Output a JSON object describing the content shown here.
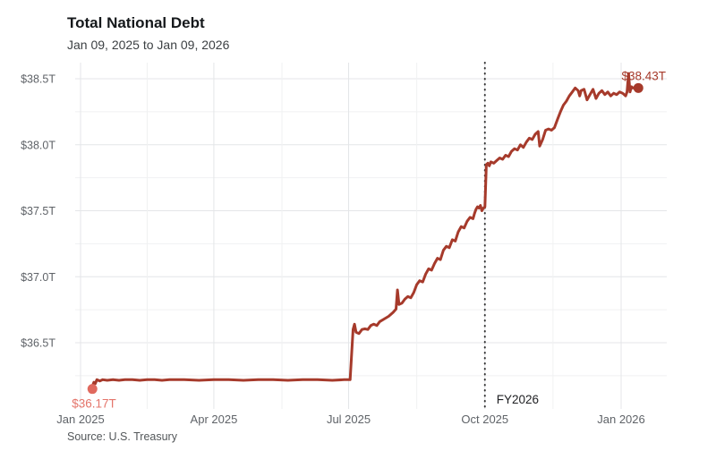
{
  "header": {
    "title": "Total National Debt",
    "subtitle": "Jan 09, 2025 to Jan 09, 2026"
  },
  "footer": {
    "source": "Source: U.S. Treasury"
  },
  "colors": {
    "line": "#a63a2b",
    "start_accent": "#e0695e",
    "start_label": "#e4756b",
    "end_label": "#a63a2b",
    "grid_major": "#e4e6e8",
    "grid_minor": "#f0f1f2",
    "axis_text": "#5f6368",
    "event_line": "#333333",
    "event_label": "#202124"
  },
  "chart_data": {
    "type": "line",
    "title": "Total National Debt",
    "subtitle": "Jan 09, 2025 to Jan 09, 2026",
    "source": "Source: U.S. Treasury",
    "xlabel": "",
    "ylabel": "",
    "x_unit": "days since 2025-01-01",
    "y_unit": "trillion USD",
    "xlim": [
      0,
      380
    ],
    "ylim": [
      35.99,
      38.62
    ],
    "grid": true,
    "x_ticks": [
      {
        "d": 0,
        "label": "Jan 2025"
      },
      {
        "d": 90,
        "label": "Apr 2025"
      },
      {
        "d": 181,
        "label": "Jul 2025"
      },
      {
        "d": 273,
        "label": "Oct 2025"
      },
      {
        "d": 365,
        "label": "Jan 2026"
      }
    ],
    "x_minor": [
      45,
      136,
      227,
      319
    ],
    "y_ticks": [
      {
        "v": 36.5,
        "label": "$36.5T"
      },
      {
        "v": 37.0,
        "label": "$37.0T"
      },
      {
        "v": 37.5,
        "label": "$37.5T"
      },
      {
        "v": 38.0,
        "label": "$38.0T"
      },
      {
        "v": 38.5,
        "label": "$38.5T"
      }
    ],
    "y_minor": [
      36.25,
      36.75,
      37.25,
      37.75,
      38.25
    ],
    "annotations": {
      "start_point": {
        "d": 8,
        "v": 36.17,
        "label": "$36.17T"
      },
      "end_point": {
        "d": 373,
        "v": 38.43,
        "label": "$38.43T"
      },
      "event_line": {
        "d": 273,
        "label": "FY2026"
      }
    },
    "series": [
      {
        "name": "Total National Debt",
        "points": [
          [
            8,
            36.17
          ],
          [
            9,
            36.2
          ],
          [
            10,
            36.19
          ],
          [
            11,
            36.22
          ],
          [
            13,
            36.21
          ],
          [
            15,
            36.22
          ],
          [
            18,
            36.215
          ],
          [
            22,
            36.22
          ],
          [
            26,
            36.215
          ],
          [
            30,
            36.22
          ],
          [
            35,
            36.22
          ],
          [
            40,
            36.215
          ],
          [
            45,
            36.22
          ],
          [
            50,
            36.22
          ],
          [
            55,
            36.215
          ],
          [
            60,
            36.22
          ],
          [
            70,
            36.22
          ],
          [
            80,
            36.215
          ],
          [
            90,
            36.22
          ],
          [
            100,
            36.22
          ],
          [
            110,
            36.215
          ],
          [
            120,
            36.22
          ],
          [
            130,
            36.22
          ],
          [
            140,
            36.215
          ],
          [
            150,
            36.22
          ],
          [
            160,
            36.22
          ],
          [
            170,
            36.215
          ],
          [
            178,
            36.22
          ],
          [
            182,
            36.22
          ],
          [
            184,
            36.6
          ],
          [
            185,
            36.64
          ],
          [
            186,
            36.58
          ],
          [
            188,
            36.57
          ],
          [
            190,
            36.6
          ],
          [
            192,
            36.605
          ],
          [
            194,
            36.6
          ],
          [
            196,
            36.63
          ],
          [
            198,
            36.64
          ],
          [
            200,
            36.63
          ],
          [
            202,
            36.66
          ],
          [
            205,
            36.68
          ],
          [
            208,
            36.7
          ],
          [
            211,
            36.73
          ],
          [
            213,
            36.755
          ],
          [
            214,
            36.9
          ],
          [
            215,
            36.79
          ],
          [
            217,
            36.8
          ],
          [
            219,
            36.83
          ],
          [
            221,
            36.85
          ],
          [
            223,
            36.84
          ],
          [
            225,
            36.88
          ],
          [
            227,
            36.94
          ],
          [
            229,
            36.97
          ],
          [
            231,
            36.96
          ],
          [
            233,
            37.02
          ],
          [
            235,
            37.06
          ],
          [
            237,
            37.05
          ],
          [
            239,
            37.1
          ],
          [
            241,
            37.14
          ],
          [
            243,
            37.13
          ],
          [
            245,
            37.2
          ],
          [
            247,
            37.23
          ],
          [
            249,
            37.22
          ],
          [
            251,
            37.28
          ],
          [
            253,
            37.27
          ],
          [
            255,
            37.34
          ],
          [
            257,
            37.38
          ],
          [
            259,
            37.37
          ],
          [
            261,
            37.42
          ],
          [
            263,
            37.45
          ],
          [
            265,
            37.44
          ],
          [
            266,
            37.48
          ],
          [
            267,
            37.51
          ],
          [
            268,
            37.53
          ],
          [
            269,
            37.52
          ],
          [
            270,
            37.54
          ],
          [
            271,
            37.5
          ],
          [
            272,
            37.52
          ],
          [
            273,
            37.53
          ],
          [
            274,
            37.85
          ],
          [
            275,
            37.86
          ],
          [
            276,
            37.84
          ],
          [
            277,
            37.87
          ],
          [
            279,
            37.86
          ],
          [
            281,
            37.88
          ],
          [
            283,
            37.9
          ],
          [
            285,
            37.89
          ],
          [
            287,
            37.92
          ],
          [
            289,
            37.91
          ],
          [
            291,
            37.95
          ],
          [
            293,
            37.97
          ],
          [
            295,
            37.96
          ],
          [
            297,
            38.0
          ],
          [
            299,
            37.98
          ],
          [
            301,
            38.02
          ],
          [
            303,
            38.05
          ],
          [
            305,
            38.04
          ],
          [
            307,
            38.08
          ],
          [
            309,
            38.1
          ],
          [
            310,
            37.99
          ],
          [
            312,
            38.04
          ],
          [
            314,
            38.11
          ],
          [
            316,
            38.12
          ],
          [
            318,
            38.11
          ],
          [
            320,
            38.13
          ],
          [
            322,
            38.19
          ],
          [
            324,
            38.25
          ],
          [
            326,
            38.3
          ],
          [
            328,
            38.33
          ],
          [
            330,
            38.37
          ],
          [
            332,
            38.4
          ],
          [
            334,
            38.43
          ],
          [
            336,
            38.41
          ],
          [
            337,
            38.37
          ],
          [
            338,
            38.41
          ],
          [
            340,
            38.42
          ],
          [
            342,
            38.34
          ],
          [
            344,
            38.38
          ],
          [
            346,
            38.42
          ],
          [
            348,
            38.35
          ],
          [
            350,
            38.39
          ],
          [
            352,
            38.41
          ],
          [
            354,
            38.38
          ],
          [
            356,
            38.4
          ],
          [
            358,
            38.37
          ],
          [
            360,
            38.39
          ],
          [
            362,
            38.38
          ],
          [
            364,
            38.4
          ],
          [
            366,
            38.39
          ],
          [
            368,
            38.37
          ],
          [
            369,
            38.4
          ],
          [
            370,
            38.54
          ],
          [
            371,
            38.4
          ],
          [
            372,
            38.44
          ],
          [
            373,
            38.43
          ]
        ]
      }
    ]
  }
}
